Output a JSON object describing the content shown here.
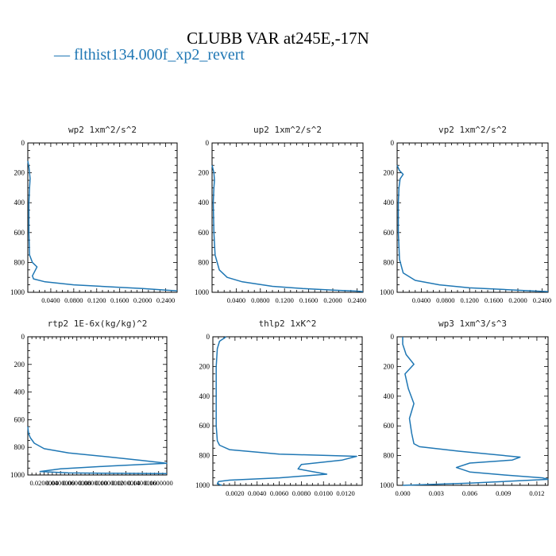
{
  "title": "CLUBB VAR at245E,-17N",
  "legend": [
    {
      "label": "— flthist134.000f_xp2_revert",
      "color": "#1f77b4"
    }
  ],
  "chart_data": [
    {
      "type": "line",
      "title": "wp2  1xm^2/s^2",
      "ylim": [
        0,
        1000
      ],
      "y_ticks": [
        "0",
        "200",
        "400",
        "600",
        "800",
        "1000"
      ],
      "xlim": [
        0,
        0.26
      ],
      "x_ticks": [
        0.04,
        0.08,
        0.12,
        0.16,
        0.2,
        0.24
      ],
      "x_tick_labels": [
        "0.0400",
        "0.0800",
        "0.1200",
        "0.1600",
        "0.2000",
        "0.2400"
      ],
      "series": [
        {
          "color": "#1f77b4",
          "x": [
            0.0,
            0.002,
            0.003,
            0.004,
            0.003,
            0.002,
            0.002,
            0.003,
            0.008,
            0.016,
            0.012,
            0.008,
            0.01,
            0.03,
            0.08,
            0.15,
            0.2,
            0.24,
            0.26
          ],
          "y": [
            120,
            160,
            200,
            240,
            300,
            400,
            600,
            750,
            800,
            830,
            860,
            890,
            910,
            930,
            950,
            965,
            975,
            985,
            990
          ]
        }
      ]
    },
    {
      "type": "line",
      "title": "up2  1xm^2/s^2",
      "ylim": [
        0,
        1000
      ],
      "y_ticks": [
        "0",
        "200",
        "400",
        "600",
        "800",
        "1000"
      ],
      "xlim": [
        0,
        0.25
      ],
      "x_ticks": [
        0.04,
        0.08,
        0.12,
        0.16,
        0.2,
        0.24
      ],
      "x_tick_labels": [
        "0.0400",
        "0.0800",
        "0.1200",
        "0.1600",
        "0.2000",
        "0.2400"
      ],
      "series": [
        {
          "color": "#1f77b4",
          "x": [
            0.0,
            0.003,
            0.004,
            0.003,
            0.002,
            0.003,
            0.005,
            0.012,
            0.025,
            0.05,
            0.1,
            0.15,
            0.2,
            0.24,
            0.25
          ],
          "y": [
            150,
            200,
            250,
            300,
            400,
            600,
            750,
            850,
            900,
            930,
            960,
            975,
            985,
            992,
            995
          ]
        }
      ]
    },
    {
      "type": "line",
      "title": "vp2  1xm^2/s^2",
      "ylim": [
        0,
        1000
      ],
      "y_ticks": [
        "0",
        "200",
        "400",
        "600",
        "800",
        "1000"
      ],
      "xlim": [
        0,
        0.25
      ],
      "x_ticks": [
        0.04,
        0.08,
        0.12,
        0.16,
        0.2,
        0.24
      ],
      "x_tick_labels": [
        "0.0400",
        "0.0800",
        "0.1200",
        "0.1600",
        "0.2000",
        "0.2400"
      ],
      "series": [
        {
          "color": "#1f77b4",
          "x": [
            0.0,
            0.004,
            0.01,
            0.005,
            0.003,
            0.002,
            0.002,
            0.004,
            0.01,
            0.03,
            0.07,
            0.12,
            0.18,
            0.22,
            0.25
          ],
          "y": [
            150,
            185,
            210,
            240,
            300,
            400,
            600,
            780,
            870,
            920,
            950,
            970,
            982,
            990,
            995
          ]
        }
      ]
    },
    {
      "type": "line",
      "title": "rtp2  1E-6x(kg/kg)^2",
      "ylim": [
        0,
        1000
      ],
      "y_ticks": [
        "0",
        "200",
        "400",
        "600",
        "800",
        "1000"
      ],
      "xlim": [
        0,
        0.17
      ],
      "x_ticks": [
        0.02,
        0.04,
        0.06,
        0.08,
        0.1,
        0.12,
        0.14,
        0.16
      ],
      "x_tick_labels": [
        "0.0200000",
        "0.0400000",
        "0.0600000",
        "0.0800000",
        "0.1000000",
        "0.1200000",
        "0.1400000",
        "0.1600000"
      ],
      "series": [
        {
          "color": "#1f77b4",
          "x": [
            0.0,
            0.001,
            0.003,
            0.008,
            0.02,
            0.05,
            0.1,
            0.14,
            0.17,
            0.1,
            0.04,
            0.015,
            0.05,
            0.17
          ],
          "y": [
            650,
            700,
            730,
            770,
            810,
            840,
            870,
            895,
            915,
            935,
            955,
            975,
            985,
            990
          ]
        }
      ]
    },
    {
      "type": "line",
      "title": "thlp2  1xK^2",
      "ylim": [
        0,
        1000
      ],
      "y_ticks": [
        "0",
        "200",
        "400",
        "600",
        "800",
        "1000"
      ],
      "xlim": [
        0,
        0.0135
      ],
      "x_ticks": [
        0.002,
        0.004,
        0.006,
        0.008,
        0.01,
        0.012
      ],
      "x_tick_labels": [
        "0.0020",
        "0.0040",
        "0.0060",
        "0.0080",
        "0.0100",
        "0.0120"
      ],
      "series": [
        {
          "color": "#1f77b4",
          "x": [
            0.0012,
            0.0006,
            0.0004,
            0.0003,
            0.0003,
            0.0003,
            0.0004,
            0.0006,
            0.0015,
            0.006,
            0.013,
            0.0117,
            0.008,
            0.0077,
            0.0103,
            0.006,
            0.0015,
            0.0005,
            0.0004,
            0.0008
          ],
          "y": [
            0,
            30,
            80,
            200,
            400,
            600,
            700,
            730,
            760,
            790,
            805,
            830,
            860,
            890,
            925,
            950,
            965,
            975,
            990,
            1000
          ]
        }
      ]
    },
    {
      "type": "line",
      "title": "wp3  1xm^3/s^3",
      "ylim": [
        0,
        1000
      ],
      "y_ticks": [
        "0",
        "200",
        "400",
        "600",
        "800",
        "1000"
      ],
      "xlim": [
        -0.0005,
        0.013
      ],
      "x_ticks": [
        0.0,
        0.003,
        0.006,
        0.009,
        0.012
      ],
      "x_tick_labels": [
        "0.000",
        "0.003",
        "0.006",
        "0.009",
        "0.012"
      ],
      "series": [
        {
          "color": "#1f77b4",
          "x": [
            0.0,
            0.0,
            0.0003,
            0.001,
            0.0002,
            0.0005,
            0.001,
            0.0006,
            0.0008,
            0.001,
            0.0015,
            0.005,
            0.0105,
            0.0098,
            0.006,
            0.0048,
            0.006,
            0.009,
            0.0125,
            0.013,
            0.006,
            0.0
          ],
          "y": [
            0,
            50,
            120,
            185,
            250,
            350,
            450,
            550,
            650,
            720,
            740,
            770,
            810,
            830,
            850,
            880,
            910,
            930,
            950,
            960,
            985,
            1000
          ]
        }
      ]
    }
  ]
}
